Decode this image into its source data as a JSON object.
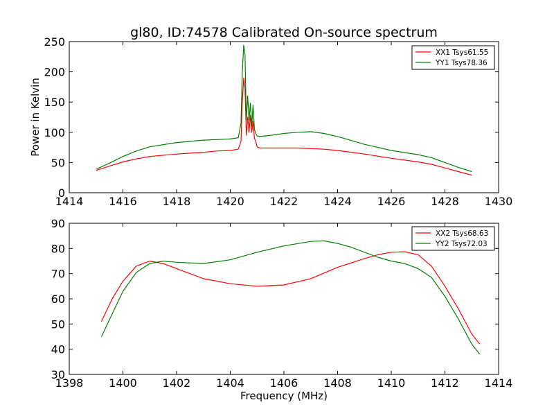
{
  "title": "gl80, ID:74578 Calibrated On-source spectrum",
  "chart_data": [
    {
      "type": "line",
      "ylabel": "Power in Kelvin",
      "xlabel": "",
      "xlim": [
        1414,
        1430
      ],
      "ylim": [
        0,
        250
      ],
      "xticks": [
        1414,
        1416,
        1418,
        1420,
        1422,
        1424,
        1426,
        1428,
        1430
      ],
      "yticks": [
        0,
        50,
        100,
        150,
        200,
        250
      ],
      "legend_position": "top-right",
      "series": [
        {
          "name": "XX1 Tsys61.55",
          "color": "#ff0000",
          "x": [
            1415.0,
            1415.5,
            1416.0,
            1416.5,
            1417.0,
            1418.0,
            1419.0,
            1419.5,
            1420.0,
            1420.3,
            1420.4,
            1420.45,
            1420.5,
            1420.55,
            1420.6,
            1420.65,
            1420.7,
            1420.75,
            1420.8,
            1420.85,
            1420.9,
            1420.95,
            1421.0,
            1421.1,
            1421.5,
            1422.0,
            1422.5,
            1423.0,
            1423.5,
            1424.0,
            1425.0,
            1426.0,
            1427.0,
            1427.5,
            1428.0,
            1428.5,
            1429.0
          ],
          "y": [
            37,
            44,
            51,
            56,
            60,
            64,
            67,
            69,
            70,
            72,
            85,
            150,
            190,
            175,
            95,
            125,
            100,
            128,
            100,
            118,
            90,
            85,
            76,
            74,
            74,
            74,
            74,
            73,
            72,
            70,
            64,
            57,
            51,
            47,
            41,
            35,
            29
          ]
        },
        {
          "name": "YY1 Tsys78.36",
          "color": "#008000",
          "x": [
            1415.0,
            1415.5,
            1416.0,
            1416.5,
            1417.0,
            1418.0,
            1419.0,
            1419.5,
            1420.0,
            1420.3,
            1420.4,
            1420.45,
            1420.5,
            1420.55,
            1420.6,
            1420.65,
            1420.7,
            1420.75,
            1420.8,
            1420.85,
            1420.9,
            1420.95,
            1421.0,
            1421.1,
            1421.5,
            1422.0,
            1422.5,
            1423.0,
            1423.5,
            1424.0,
            1425.0,
            1426.0,
            1427.0,
            1427.5,
            1428.0,
            1428.5,
            1429.0
          ],
          "y": [
            39,
            49,
            60,
            69,
            76,
            83,
            87,
            88,
            89,
            91,
            115,
            200,
            244,
            230,
            120,
            160,
            120,
            148,
            110,
            145,
            105,
            98,
            94,
            93,
            95,
            98,
            100,
            101,
            98,
            93,
            80,
            70,
            63,
            58,
            50,
            42,
            35
          ]
        }
      ]
    },
    {
      "type": "line",
      "xlabel": "Frequency (MHz)",
      "ylabel": "",
      "xlim": [
        1398,
        1414
      ],
      "ylim": [
        30,
        90
      ],
      "xticks": [
        1398,
        1400,
        1402,
        1404,
        1406,
        1408,
        1410,
        1412,
        1414
      ],
      "yticks": [
        30,
        40,
        50,
        60,
        70,
        80,
        90
      ],
      "legend_position": "top-right",
      "series": [
        {
          "name": "XX2 Tsys68.63",
          "color": "#ff0000",
          "x": [
            1399.2,
            1399.6,
            1400.0,
            1400.5,
            1401.0,
            1401.5,
            1402.0,
            1403.0,
            1404.0,
            1405.0,
            1406.0,
            1407.0,
            1408.0,
            1409.0,
            1409.5,
            1410.0,
            1410.5,
            1411.0,
            1411.5,
            1412.0,
            1412.5,
            1413.0,
            1413.3
          ],
          "y": [
            51,
            60,
            67,
            73,
            75,
            74,
            72,
            68,
            66,
            65,
            65.5,
            68,
            72.5,
            76,
            77.5,
            78.5,
            78.7,
            77.5,
            73,
            65,
            56,
            46,
            42
          ]
        },
        {
          "name": "YY2 Tsys72.03",
          "color": "#008000",
          "x": [
            1399.2,
            1399.6,
            1400.0,
            1400.5,
            1401.0,
            1401.5,
            1402.0,
            1403.0,
            1404.0,
            1405.0,
            1406.0,
            1407.0,
            1407.5,
            1408.0,
            1408.5,
            1409.0,
            1409.5,
            1410.0,
            1410.5,
            1411.0,
            1411.5,
            1412.0,
            1412.5,
            1413.0,
            1413.3
          ],
          "y": [
            45,
            54,
            63,
            70.5,
            74,
            75,
            74.5,
            74,
            75.5,
            78.5,
            81,
            82.8,
            83,
            82,
            80.5,
            78.5,
            76.5,
            75,
            74,
            72,
            68.5,
            61,
            52,
            42,
            38
          ]
        }
      ]
    }
  ]
}
